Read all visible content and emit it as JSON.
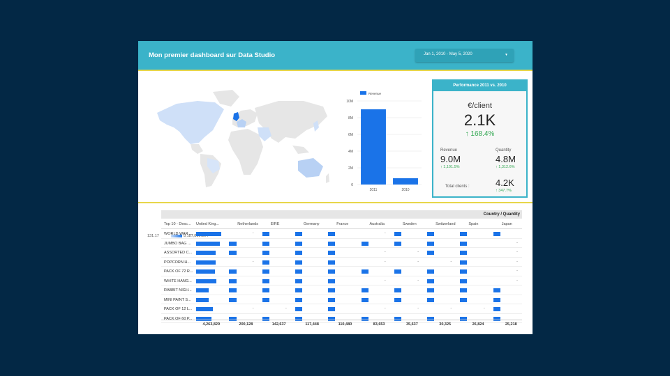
{
  "header": {
    "title": "Mon premier dashboard sur Data Studio",
    "date_range": "Jan 1, 2010 - May 5, 2020"
  },
  "map": {
    "legend_min": "131.17",
    "legend_max": "8,187,806.364",
    "colors": {
      "low": "#c6dbf7",
      "high": "#1a73e8",
      "base": "#e6e6e6"
    }
  },
  "chart_data": {
    "type": "bar",
    "categories": [
      "2011",
      "2010"
    ],
    "series": [
      {
        "name": "Revenue",
        "values": [
          9000000,
          750000
        ]
      }
    ],
    "y_ticks": [
      "0",
      "2M",
      "4M",
      "6M",
      "8M",
      "10M"
    ],
    "ylim": [
      0,
      10000000
    ],
    "grid": true,
    "legend_placement": "top"
  },
  "kpi": {
    "title": "Performance 2011 vs. 2010",
    "unit_label": "€/client",
    "main_value": "2.1K",
    "main_delta": "168.4%",
    "revenue_label": "Revenue",
    "revenue_value": "9.0M",
    "revenue_delta": "1,101.5%",
    "quantity_label": "Quantity",
    "quantity_value": "4.8M",
    "quantity_delta": "1,312.6%",
    "clients_label": "Total clients :",
    "clients_value": "4.2K",
    "clients_delta": "347.7%",
    "accent": "#3bb3c9",
    "up_color": "#34a853"
  },
  "table": {
    "title": "Country / Quantity",
    "row_header": "Top 10 - Desc...",
    "columns": [
      "United King...",
      "Netherlands",
      "EIRE",
      "Germany",
      "France",
      "Australia",
      "Sweden",
      "Switzerland",
      "Spain",
      "Japan"
    ],
    "rows": [
      {
        "label": "WORLD WAR ...",
        "values": [
          0.9,
          0,
          0.25,
          0.25,
          0.25,
          0,
          0.25,
          0.25,
          0.25,
          0.25
        ],
        "dash": [
          1,
          5,
          9
        ]
      },
      {
        "label": "JUMBO BAG ...",
        "values": [
          0.85,
          0.28,
          0.25,
          0.25,
          0.25,
          0.25,
          0.25,
          0.25,
          0.25,
          0
        ],
        "dash": [
          9
        ]
      },
      {
        "label": "ASSORTED C...",
        "values": [
          0.7,
          0.28,
          0.25,
          0.25,
          0.25,
          0,
          0,
          0.25,
          0.25,
          0
        ],
        "dash": [
          5,
          6,
          9
        ]
      },
      {
        "label": "POPCORN H...",
        "values": [
          0.7,
          0,
          0.25,
          0.25,
          0.25,
          0,
          0,
          0,
          0.25,
          0
        ],
        "dash": [
          1,
          5,
          6,
          7,
          9
        ]
      },
      {
        "label": "PACK OF 72 R...",
        "values": [
          0.68,
          0.28,
          0.25,
          0.25,
          0.25,
          0.25,
          0.25,
          0.25,
          0.25,
          0
        ],
        "dash": [
          9
        ]
      },
      {
        "label": "WHITE HANG...",
        "values": [
          0.72,
          0.28,
          0.25,
          0.25,
          0.25,
          0,
          0,
          0.25,
          0.25,
          0
        ],
        "dash": [
          5,
          6,
          9
        ]
      },
      {
        "label": "RABBIT NIGH...",
        "values": [
          0.45,
          0.28,
          0.25,
          0.25,
          0.25,
          0.25,
          0.25,
          0.25,
          0.25,
          0.25
        ],
        "dash": []
      },
      {
        "label": "MINI PAINT S...",
        "values": [
          0.45,
          0.28,
          0.25,
          0.25,
          0.25,
          0.25,
          0.25,
          0.25,
          0.25,
          0.25
        ],
        "dash": []
      },
      {
        "label": "PACK OF 12 L...",
        "values": [
          0.6,
          0,
          0,
          0.25,
          0.25,
          0,
          0,
          0,
          0,
          0.25
        ],
        "dash": [
          1,
          2,
          5,
          6,
          7,
          8
        ]
      },
      {
        "label": "PACK OF 60 P...",
        "values": [
          0.55,
          0.28,
          0.25,
          0.25,
          0.25,
          0.25,
          0.25,
          0.25,
          0.25,
          0.25
        ],
        "dash": []
      }
    ],
    "totals": [
      "4,263,829",
      "200,128",
      "142,637",
      "117,448",
      "110,480",
      "83,653",
      "35,637",
      "30,325",
      "26,824",
      "25,218"
    ],
    "bar_color": "#1a73e8"
  }
}
